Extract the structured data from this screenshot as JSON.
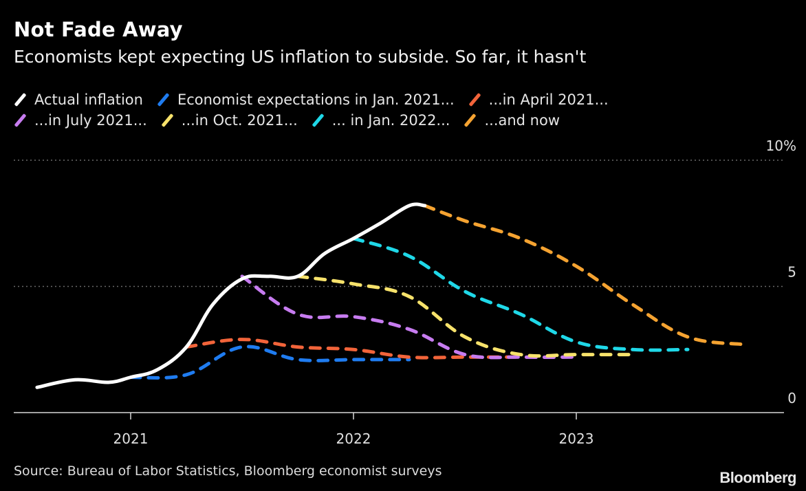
{
  "header": {
    "title": "Not Fade Away",
    "subtitle": "Economists kept expecting US inflation to subside. So far, it hasn't"
  },
  "legend": {
    "rows": [
      [
        {
          "label": "Actual inflation",
          "color": "#ffffff"
        },
        {
          "label": "Economist expectations in Jan. 2021...",
          "color": "#1f7cf0"
        },
        {
          "label": "...in April 2021...",
          "color": "#f2643a"
        }
      ],
      [
        {
          "label": "...in July 2021...",
          "color": "#c77cf0"
        },
        {
          "label": "...in Oct. 2021...",
          "color": "#f7e26b"
        },
        {
          "label": "... in Jan. 2022...",
          "color": "#1fd8e8"
        },
        {
          "label": "...and now",
          "color": "#f5a331"
        }
      ]
    ]
  },
  "footer": {
    "source": "Source: Bureau of Labor Statistics, Bloomberg economist surveys",
    "brand": "Bloomberg"
  },
  "chart_data": {
    "type": "line",
    "title": "Not Fade Away",
    "subtitle": "Economists kept expecting US inflation to subside. So far, it hasn't",
    "xlabel": "",
    "ylabel": "",
    "x_unit": "year (decimal)",
    "xlim": [
      2020.53,
      2024.0
    ],
    "ylim": [
      0,
      10
    ],
    "x_ticks": [
      {
        "value": 2021,
        "label": "2021"
      },
      {
        "value": 2022,
        "label": "2022"
      },
      {
        "value": 2023,
        "label": "2023"
      }
    ],
    "y_ticks": [
      {
        "value": 0,
        "label": "0"
      },
      {
        "value": 5,
        "label": "5"
      },
      {
        "value": 10,
        "label": "10%"
      }
    ],
    "grid": "horizontal-dotted",
    "legend_position": "top-left",
    "series": [
      {
        "name": "Actual inflation",
        "color": "#ffffff",
        "style": "solid",
        "points": [
          [
            2020.58,
            1.0
          ],
          [
            2020.75,
            1.3
          ],
          [
            2020.9,
            1.2
          ],
          [
            2021.0,
            1.4
          ],
          [
            2021.12,
            1.7
          ],
          [
            2021.25,
            2.6
          ],
          [
            2021.37,
            4.3
          ],
          [
            2021.5,
            5.3
          ],
          [
            2021.62,
            5.4
          ],
          [
            2021.75,
            5.4
          ],
          [
            2021.87,
            6.3
          ],
          [
            2022.0,
            6.9
          ],
          [
            2022.12,
            7.5
          ],
          [
            2022.25,
            8.2
          ],
          [
            2022.32,
            8.2
          ]
        ]
      },
      {
        "name": "Economist expectations in Jan. 2021...",
        "color": "#1f7cf0",
        "style": "dashed",
        "points": [
          [
            2021.0,
            1.4
          ],
          [
            2021.25,
            1.5
          ],
          [
            2021.5,
            2.6
          ],
          [
            2021.75,
            2.1
          ],
          [
            2022.0,
            2.1
          ],
          [
            2022.25,
            2.1
          ]
        ]
      },
      {
        "name": "...in April 2021...",
        "color": "#f2643a",
        "style": "dashed",
        "points": [
          [
            2021.25,
            2.6
          ],
          [
            2021.5,
            2.9
          ],
          [
            2021.75,
            2.6
          ],
          [
            2022.0,
            2.5
          ],
          [
            2022.25,
            2.2
          ],
          [
            2022.5,
            2.2
          ],
          [
            2022.75,
            2.2
          ]
        ]
      },
      {
        "name": "...in July 2021...",
        "color": "#c77cf0",
        "style": "dashed",
        "points": [
          [
            2021.5,
            5.4
          ],
          [
            2021.75,
            3.9
          ],
          [
            2022.0,
            3.8
          ],
          [
            2022.25,
            3.3
          ],
          [
            2022.5,
            2.3
          ],
          [
            2022.75,
            2.2
          ],
          [
            2023.0,
            2.2
          ]
        ]
      },
      {
        "name": "...in Oct. 2021...",
        "color": "#f7e26b",
        "style": "dashed",
        "points": [
          [
            2021.75,
            5.4
          ],
          [
            2022.0,
            5.1
          ],
          [
            2022.25,
            4.6
          ],
          [
            2022.5,
            3.0
          ],
          [
            2022.75,
            2.3
          ],
          [
            2023.0,
            2.3
          ],
          [
            2023.25,
            2.3
          ]
        ]
      },
      {
        "name": "... in Jan. 2022...",
        "color": "#1fd8e8",
        "style": "dashed",
        "points": [
          [
            2022.0,
            6.9
          ],
          [
            2022.25,
            6.2
          ],
          [
            2022.5,
            4.8
          ],
          [
            2022.75,
            3.9
          ],
          [
            2023.0,
            2.8
          ],
          [
            2023.25,
            2.5
          ],
          [
            2023.5,
            2.5
          ]
        ]
      },
      {
        "name": "...and now",
        "color": "#f5a331",
        "style": "dashed",
        "points": [
          [
            2022.32,
            8.2
          ],
          [
            2022.5,
            7.6
          ],
          [
            2022.75,
            6.9
          ],
          [
            2023.0,
            5.8
          ],
          [
            2023.25,
            4.3
          ],
          [
            2023.5,
            3.0
          ],
          [
            2023.75,
            2.7
          ]
        ]
      }
    ]
  }
}
